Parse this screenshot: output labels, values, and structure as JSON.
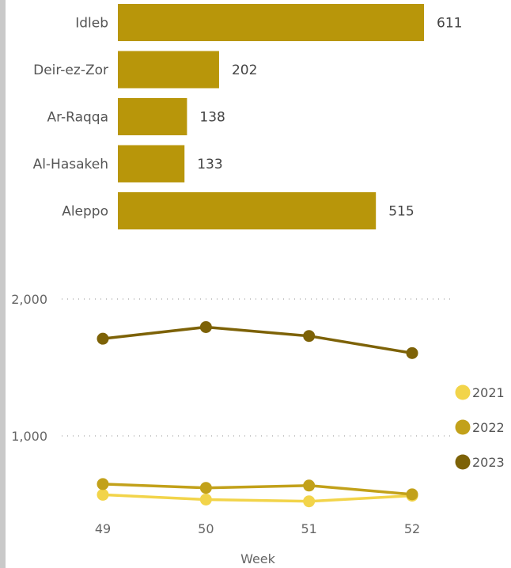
{
  "chart_data": [
    {
      "type": "bar",
      "orientation": "horizontal",
      "categories": [
        "Idleb",
        "Deir-ez-Zor",
        "Ar-Raqqa",
        "Al-Hasakeh",
        "Aleppo"
      ],
      "values": [
        611,
        202,
        138,
        133,
        515
      ],
      "xlim": [
        0,
        611
      ],
      "color": "#b8960a",
      "data_labels": true,
      "grid": false,
      "title": "",
      "xlabel": "",
      "ylabel": ""
    },
    {
      "type": "line",
      "x": [
        49,
        50,
        51,
        52
      ],
      "series": [
        {
          "name": "2021",
          "values": [
            570,
            535,
            522,
            563
          ],
          "color": "#f2d44a"
        },
        {
          "name": "2022",
          "values": [
            648,
            620,
            637,
            573
          ],
          "color": "#c2a11a"
        },
        {
          "name": "2023",
          "values": [
            1710,
            1795,
            1730,
            1605
          ],
          "color": "#7d6207"
        }
      ],
      "ylim": [
        500,
        2120
      ],
      "yticks": [
        1000,
        2000
      ],
      "ytick_labels": [
        "1,000",
        "2,000"
      ],
      "xtick_labels": [
        "49",
        "50",
        "51",
        "52"
      ],
      "xlabel": "Week",
      "ylabel": "",
      "title": "",
      "grid": "dotted horizontal",
      "legend_placement": "right"
    }
  ]
}
